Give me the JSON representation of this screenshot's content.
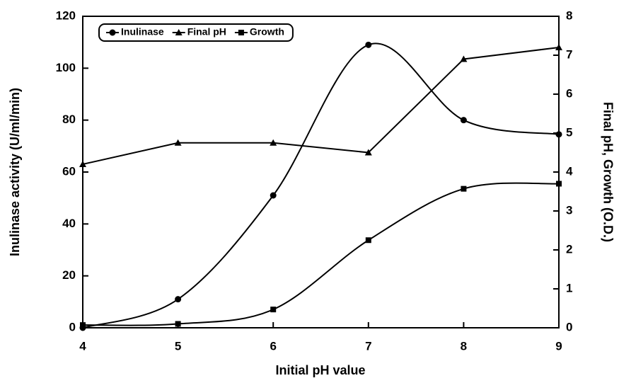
{
  "chart_data": {
    "type": "line",
    "x_label": "Initial pH value",
    "y_label": "Inulinase activity (U/ml/min)",
    "y2_label": "Final pH, Growth (O.D.)",
    "x": [
      4,
      5,
      6,
      7,
      8,
      9
    ],
    "xlim": [
      4,
      9
    ],
    "xticks": [
      4,
      5,
      6,
      7,
      8,
      9
    ],
    "ylim": [
      0,
      120
    ],
    "yticks": [
      0,
      20,
      40,
      60,
      80,
      100,
      120
    ],
    "y2lim": [
      0,
      8
    ],
    "y2ticks": [
      0,
      1,
      2,
      3,
      4,
      5,
      6,
      7,
      8
    ],
    "legend": "top-left",
    "series": [
      {
        "name": "Inulinase",
        "color": "#000000",
        "marker": "circle",
        "smooth": true,
        "values": [
          0,
          11,
          51,
          109,
          80,
          74.5
        ]
      },
      {
        "name": "Final pH",
        "color": "#000000",
        "marker": "triangle",
        "smooth": false,
        "axis": "y2",
        "values": [
          4.2,
          4.75,
          4.75,
          4.5,
          6.9,
          7.2
        ]
      },
      {
        "name": "Growth",
        "color": "#000000",
        "marker": "square",
        "smooth": true,
        "axis": "y2",
        "values": [
          0.07,
          0.1,
          0.47,
          2.25,
          3.57,
          3.7
        ]
      }
    ]
  }
}
